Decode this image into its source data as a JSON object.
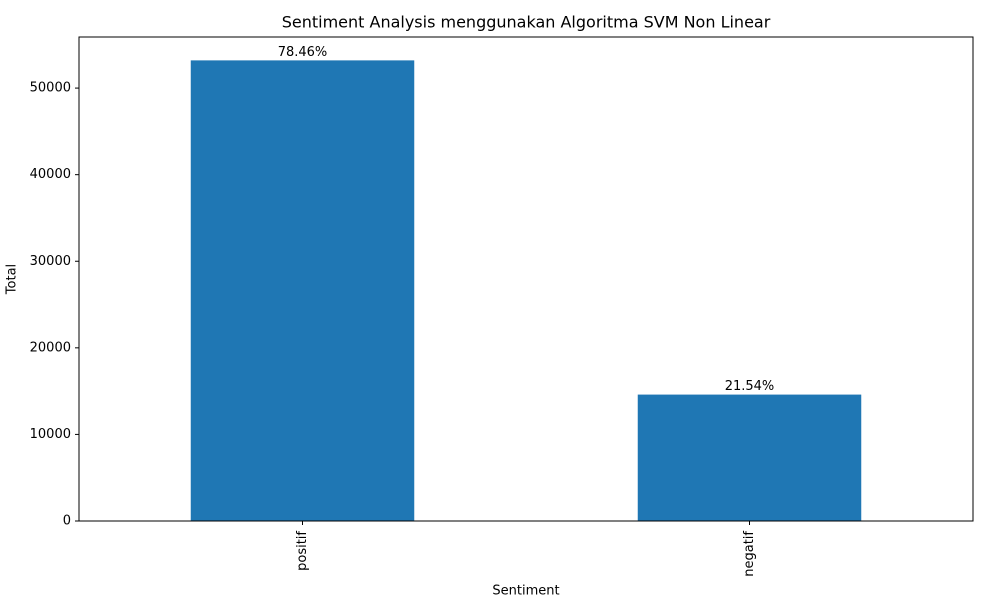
{
  "chart_data": {
    "type": "bar",
    "title": "Sentiment Analysis menggunakan Algoritma SVM Non Linear",
    "x_label": "Sentiment",
    "y_label": "Total",
    "categories": [
      "positif",
      "negatif"
    ],
    "values": [
      53200,
      14600
    ],
    "annotations": [
      "78.46%",
      "21.54%"
    ],
    "color": "#1f77b4",
    "ylim": [
      0,
      55900
    ],
    "yticks": [
      0,
      10000,
      20000,
      30000,
      40000,
      50000
    ],
    "grid": false
  }
}
